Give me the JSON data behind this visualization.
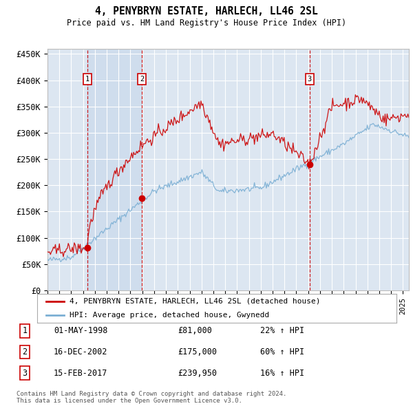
{
  "title": "4, PENYBRYN ESTATE, HARLECH, LL46 2SL",
  "subtitle": "Price paid vs. HM Land Registry's House Price Index (HPI)",
  "yticks": [
    0,
    50000,
    100000,
    150000,
    200000,
    250000,
    300000,
    350000,
    400000,
    450000
  ],
  "ytick_labels": [
    "£0",
    "£50K",
    "£100K",
    "£150K",
    "£200K",
    "£250K",
    "£300K",
    "£350K",
    "£400K",
    "£450K"
  ],
  "xlim_start": 1995.0,
  "xlim_end": 2025.5,
  "ylim_min": 0,
  "ylim_max": 460000,
  "background_color": "#dce6f1",
  "grid_color": "#ffffff",
  "red_line_color": "#cc0000",
  "blue_line_color": "#7bafd4",
  "dashed_line_color": "#cc0000",
  "marker_box_color": "#cc0000",
  "shade_color": "#c5d8ee",
  "sale1_date": 1998.37,
  "sale1_price": 81000,
  "sale1_label": "1",
  "sale1_text": "01-MAY-1998",
  "sale1_amount": "£81,000",
  "sale1_hpi": "22% ↑ HPI",
  "sale2_date": 2002.96,
  "sale2_price": 175000,
  "sale2_label": "2",
  "sale2_text": "16-DEC-2002",
  "sale2_amount": "£175,000",
  "sale2_hpi": "60% ↑ HPI",
  "sale3_date": 2017.12,
  "sale3_price": 239950,
  "sale3_label": "3",
  "sale3_text": "15-FEB-2017",
  "sale3_amount": "£239,950",
  "sale3_hpi": "16% ↑ HPI",
  "legend_line1": "4, PENYBRYN ESTATE, HARLECH, LL46 2SL (detached house)",
  "legend_line2": "HPI: Average price, detached house, Gwynedd",
  "footer1": "Contains HM Land Registry data © Crown copyright and database right 2024.",
  "footer2": "This data is licensed under the Open Government Licence v3.0."
}
